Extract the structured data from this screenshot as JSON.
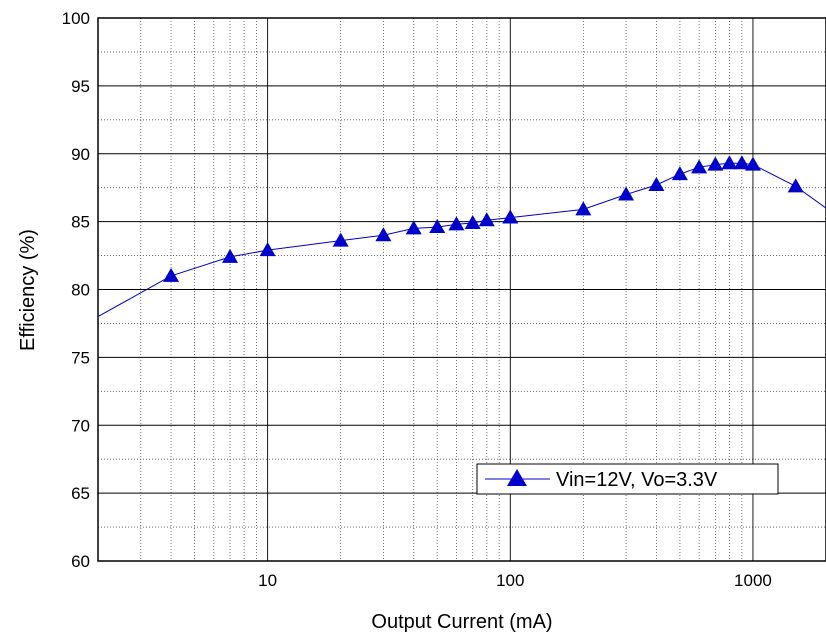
{
  "chart_data": {
    "type": "line",
    "xlabel": "Output Current (mA)",
    "ylabel": "Efficiency (%)",
    "x_scale": "log",
    "xlim": [
      2,
      2000
    ],
    "ylim": [
      60,
      100
    ],
    "x_ticks": [
      10,
      100,
      1000
    ],
    "x_tick_labels": [
      "10",
      "100",
      "1000"
    ],
    "y_ticks": [
      60,
      65,
      70,
      75,
      80,
      85,
      90,
      95,
      100
    ],
    "y_tick_labels": [
      "60",
      "65",
      "70",
      "75",
      "80",
      "85",
      "90",
      "95",
      "100"
    ],
    "grid": true,
    "legend_position": "lower-right",
    "series": [
      {
        "name": "Vin=12V, Vo=3.3V",
        "color": "#0000cc",
        "line_x": [
          2,
          4,
          7,
          10,
          20,
          30,
          40,
          50,
          60,
          70,
          80,
          100,
          200,
          300,
          400,
          500,
          600,
          700,
          800,
          900,
          1000,
          1500,
          2000
        ],
        "line_y": [
          78.0,
          81.0,
          82.4,
          82.9,
          83.6,
          84.0,
          84.5,
          84.6,
          84.8,
          84.9,
          85.1,
          85.3,
          85.9,
          87.0,
          87.7,
          88.5,
          89.0,
          89.2,
          89.3,
          89.3,
          89.2,
          87.6,
          86.0
        ],
        "marker_x": [
          4,
          7,
          10,
          20,
          30,
          40,
          50,
          60,
          70,
          80,
          100,
          200,
          300,
          400,
          500,
          600,
          700,
          800,
          900,
          1000,
          1500
        ],
        "marker_y": [
          81.0,
          82.4,
          82.9,
          83.6,
          84.0,
          84.5,
          84.6,
          84.8,
          84.9,
          85.1,
          85.3,
          85.9,
          87.0,
          87.7,
          88.5,
          89.0,
          89.2,
          89.3,
          89.3,
          89.2,
          87.6
        ]
      }
    ]
  }
}
